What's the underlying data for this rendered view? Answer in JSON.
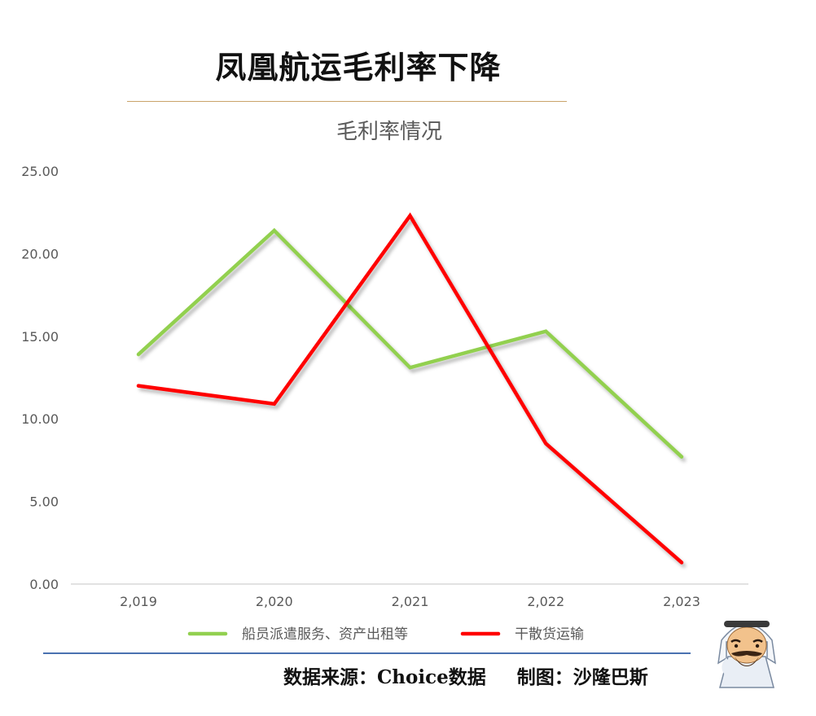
{
  "page_title": "凤凰航运毛利率下降",
  "footer": {
    "source": "数据来源：Choice数据",
    "credit": "制图：沙隆巴斯"
  },
  "chart_data": {
    "type": "line",
    "title": "毛利率情况",
    "xlabel": "",
    "ylabel": "",
    "categories": [
      "2,019",
      "2,020",
      "2,021",
      "2,022",
      "2,023"
    ],
    "ylim": [
      0,
      25
    ],
    "yticks": [
      "0.00",
      "5.00",
      "10.00",
      "15.00",
      "20.00",
      "25.00"
    ],
    "grid": false,
    "legend_position": "bottom",
    "series": [
      {
        "name": "船员派遣服务、资产出租等",
        "color": "#92d050",
        "values": [
          13.9,
          21.4,
          13.1,
          15.3,
          7.7
        ]
      },
      {
        "name": "干散货运输",
        "color": "#ff0000",
        "values": [
          12.0,
          10.9,
          22.3,
          8.5,
          1.3
        ]
      }
    ]
  }
}
